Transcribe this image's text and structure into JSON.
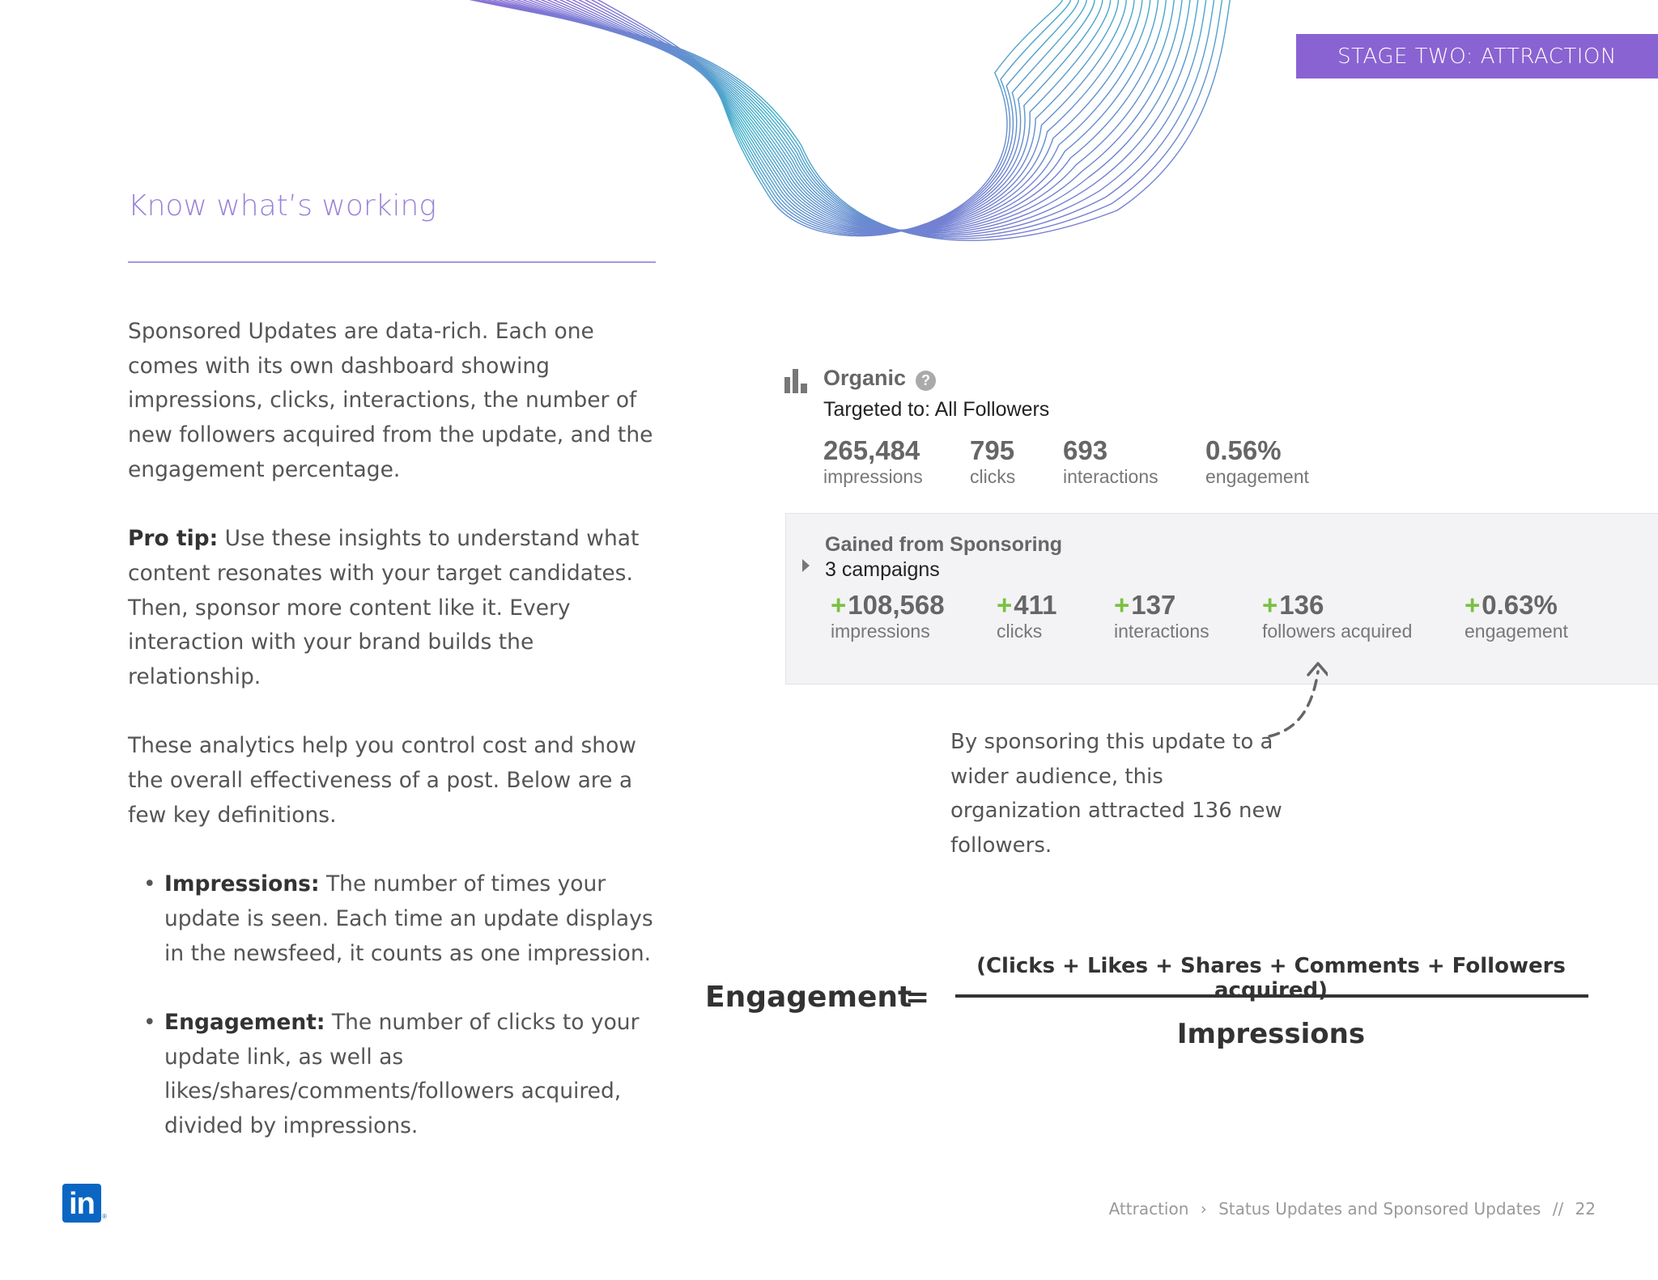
{
  "stage_tab": "STAGE TWO: ATTRACTION",
  "heading": "Know what’s working",
  "para1": "Sponsored Updates are data-rich. Each one comes with its own dashboard showing impressions, clicks, interactions, the number of new followers acquired from the update, and the engagement percentage.",
  "pro_tip": {
    "label": "Pro tip:",
    "text": " Use these insights to understand what content resonates with your target candidates. Then, sponsor more content like it. Every interaction with your brand builds the relationship."
  },
  "para3": "These analytics help you control cost and show the overall effectiveness of a post. Below are a few key definitions.",
  "definitions": [
    {
      "term": "Impressions:",
      "text": " The number of times your update is seen. Each time an update displays in the newsfeed, it counts as one impression."
    },
    {
      "term": "Engagement:",
      "text": " The number of clicks to your update link, as well as likes/shares/comments/followers acquired, divided by impressions."
    }
  ],
  "organic": {
    "title": "Organic",
    "help": "?",
    "targeted": "Targeted to: All Followers",
    "stats": [
      {
        "value": "265,484",
        "label": "impressions"
      },
      {
        "value": "795",
        "label": "clicks"
      },
      {
        "value": "693",
        "label": "interactions"
      },
      {
        "value": "0.56%",
        "label": "engagement"
      }
    ]
  },
  "sponsoring": {
    "title": "Gained from Sponsoring",
    "subtitle": "3 campaigns",
    "plus": "+",
    "stats": [
      {
        "value": "108,568",
        "label": "impressions"
      },
      {
        "value": "411",
        "label": "clicks"
      },
      {
        "value": "137",
        "label": "interactions"
      },
      {
        "value": "136",
        "label": "followers acquired"
      },
      {
        "value": "0.63%",
        "label": "engagement"
      }
    ]
  },
  "callout": "By sponsoring this update to a wider audience, this organization attracted 136 new followers.",
  "formula": {
    "lhs": "Engagement",
    "eq": "=",
    "numerator": "(Clicks + Likes + Shares + Comments + Followers acquired)",
    "denominator": "Impressions"
  },
  "logo": "in",
  "logo_reg": "®",
  "footer": {
    "section": "Attraction",
    "sep": "›",
    "topic": "Status Updates and Sponsored Updates",
    "slashes": "//",
    "page": "22"
  },
  "colors": {
    "accent_purple": "#8a63d2",
    "green_plus": "#7ac142",
    "linkedin_blue": "#0a66c2"
  }
}
